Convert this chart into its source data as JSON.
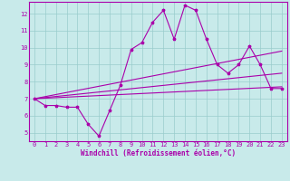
{
  "xlabel": "Windchill (Refroidissement éolien,°C)",
  "xlim": [
    -0.5,
    23.5
  ],
  "ylim": [
    4.5,
    12.7
  ],
  "yticks": [
    5,
    6,
    7,
    8,
    9,
    10,
    11,
    12
  ],
  "xticks": [
    0,
    1,
    2,
    3,
    4,
    5,
    6,
    7,
    8,
    9,
    10,
    11,
    12,
    13,
    14,
    15,
    16,
    17,
    18,
    19,
    20,
    21,
    22,
    23
  ],
  "background_color": "#c8eaea",
  "line_color": "#aa00aa",
  "grid_color": "#99cccc",
  "main_data_x": [
    0,
    1,
    2,
    3,
    4,
    5,
    6,
    7,
    8,
    9,
    10,
    11,
    12,
    13,
    14,
    15,
    16,
    17,
    18,
    19,
    20,
    21,
    22,
    23
  ],
  "main_data_y": [
    7.0,
    6.6,
    6.6,
    6.5,
    6.5,
    5.5,
    4.8,
    6.3,
    7.8,
    9.9,
    10.3,
    11.5,
    12.2,
    10.5,
    12.5,
    12.2,
    10.5,
    9.0,
    8.5,
    9.0,
    10.1,
    9.0,
    7.6,
    7.6
  ],
  "line2_x": [
    0,
    23
  ],
  "line2_y": [
    7.0,
    7.7
  ],
  "line3_x": [
    0,
    23
  ],
  "line3_y": [
    7.0,
    8.5
  ],
  "line4_x": [
    0,
    23
  ],
  "line4_y": [
    7.0,
    9.8
  ],
  "xlabel_fontsize": 5.5,
  "tick_fontsize": 5,
  "lw": 0.8,
  "marker_size": 2.5
}
